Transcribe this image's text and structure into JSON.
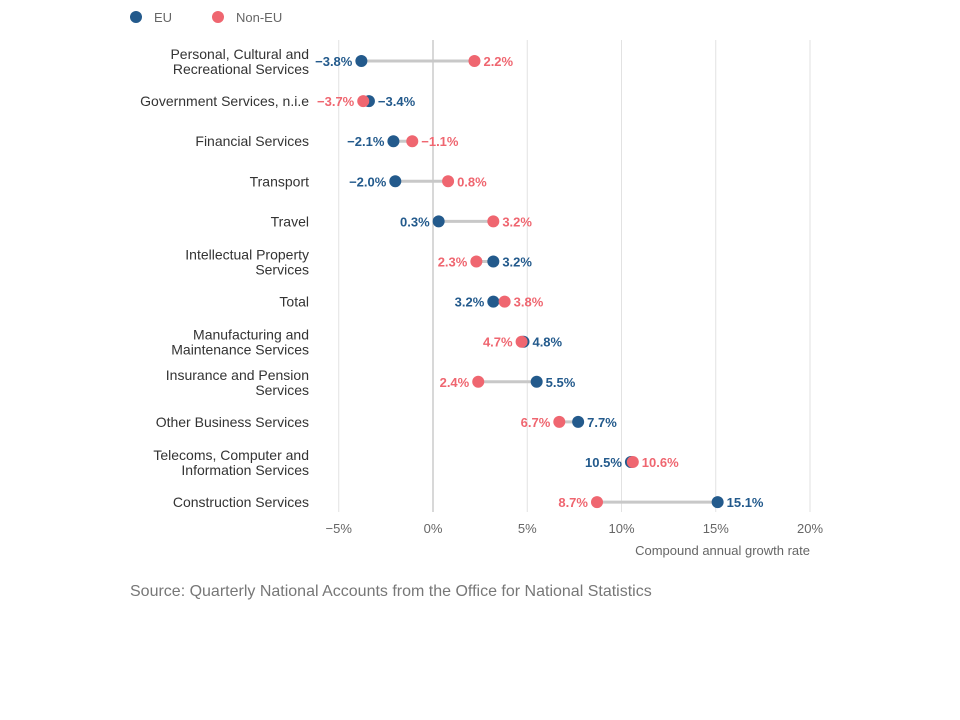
{
  "chart_data": {
    "type": "scatter",
    "subtype": "dumbbell",
    "xlabel": "Compound annual growth rate",
    "xlim": [
      -5,
      20
    ],
    "x_ticks": [
      -5,
      0,
      5,
      10,
      15,
      20
    ],
    "x_tick_labels": [
      "−5%",
      "0%",
      "5%",
      "10%",
      "15%",
      "20%"
    ],
    "grid": true,
    "legend_position": "top-left",
    "series": [
      {
        "name": "EU",
        "color": "#235a8c"
      },
      {
        "name": "Non-EU",
        "color": "#ef6670"
      }
    ],
    "categories": [
      {
        "label": [
          "Personal, Cultural and",
          "Recreational Services"
        ],
        "eu": -3.8,
        "non_eu": 2.2,
        "eu_label": "−3.8%",
        "non_eu_label": "2.2%"
      },
      {
        "label": [
          "Government Services, n.i.e"
        ],
        "eu": -3.4,
        "non_eu": -3.7,
        "eu_label": "−3.4%",
        "non_eu_label": "−3.7%"
      },
      {
        "label": [
          "Financial Services"
        ],
        "eu": -2.1,
        "non_eu": -1.1,
        "eu_label": "−2.1%",
        "non_eu_label": "−1.1%"
      },
      {
        "label": [
          "Transport"
        ],
        "eu": -2.0,
        "non_eu": 0.8,
        "eu_label": "−2.0%",
        "non_eu_label": "0.8%"
      },
      {
        "label": [
          "Travel"
        ],
        "eu": 0.3,
        "non_eu": 3.2,
        "eu_label": "0.3%",
        "non_eu_label": "3.2%"
      },
      {
        "label": [
          "Intellectual Property",
          "Services"
        ],
        "eu": 3.2,
        "non_eu": 2.3,
        "eu_label": "3.2%",
        "non_eu_label": "2.3%"
      },
      {
        "label": [
          "Total"
        ],
        "eu": 3.2,
        "non_eu": 3.8,
        "eu_label": "3.2%",
        "non_eu_label": "3.8%"
      },
      {
        "label": [
          "Manufacturing and",
          "Maintenance Services"
        ],
        "eu": 4.8,
        "non_eu": 4.7,
        "eu_label": "4.8%",
        "non_eu_label": "4.7%"
      },
      {
        "label": [
          "Insurance and Pension",
          "Services"
        ],
        "eu": 5.5,
        "non_eu": 2.4,
        "eu_label": "5.5%",
        "non_eu_label": "2.4%"
      },
      {
        "label": [
          "Other Business Services"
        ],
        "eu": 7.7,
        "non_eu": 6.7,
        "eu_label": "7.7%",
        "non_eu_label": "6.7%"
      },
      {
        "label": [
          "Telecoms, Computer and",
          "Information Services"
        ],
        "eu": 10.5,
        "non_eu": 10.6,
        "eu_label": "10.5%",
        "non_eu_label": "10.6%"
      },
      {
        "label": [
          "Construction Services"
        ],
        "eu": 15.1,
        "non_eu": 8.7,
        "eu_label": "15.1%",
        "non_eu_label": "8.7%"
      }
    ]
  },
  "source": "Source: Quarterly National Accounts from the Office for National Statistics"
}
